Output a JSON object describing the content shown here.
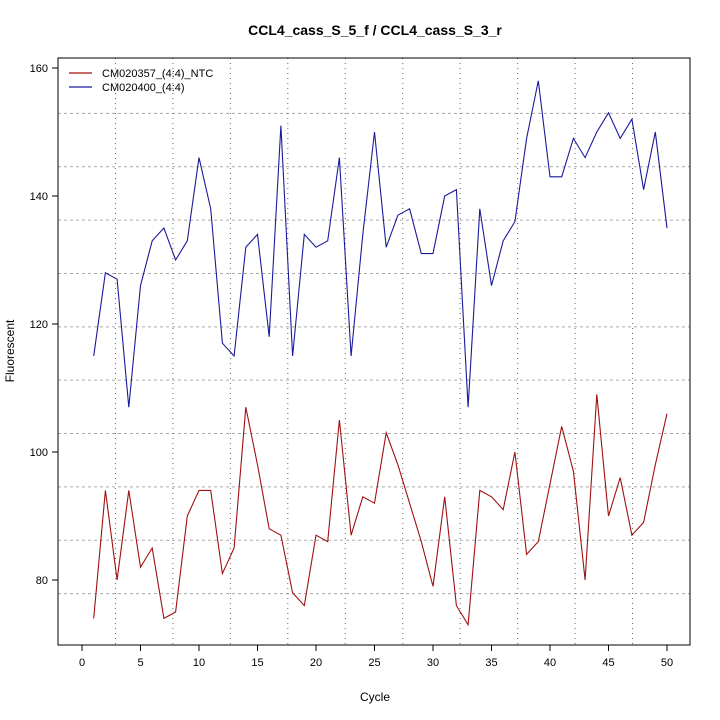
{
  "chart_data": {
    "type": "line",
    "title": "CCL4_cass_S_5_f / CCL4_cass_S_3_r",
    "xlabel": "Cycle",
    "ylabel": "Fluorescent",
    "xlim": [
      -2,
      52
    ],
    "ylim": [
      70,
      162
    ],
    "xticks": [
      0,
      5,
      10,
      15,
      20,
      25,
      30,
      35,
      40,
      45,
      50
    ],
    "yticks": [
      80,
      100,
      120,
      140,
      160
    ],
    "grid": true,
    "legend_position": "top-left",
    "x": [
      1,
      2,
      3,
      4,
      5,
      6,
      7,
      8,
      9,
      10,
      11,
      12,
      13,
      14,
      15,
      16,
      17,
      18,
      19,
      20,
      21,
      22,
      23,
      24,
      25,
      26,
      27,
      28,
      29,
      30,
      31,
      32,
      33,
      34,
      35,
      36,
      37,
      38,
      39,
      40,
      41,
      42,
      43,
      44,
      45,
      46,
      47,
      48,
      49,
      50
    ],
    "series": [
      {
        "name": "CM020357_(4:4)_NTC",
        "color": "#a01010",
        "values": [
          74,
          94,
          80,
          94,
          82,
          85,
          74,
          75,
          90,
          94,
          94,
          81,
          85,
          107,
          98,
          88,
          87,
          78,
          76,
          87,
          86,
          105,
          87,
          93,
          92,
          103,
          98,
          92,
          86,
          79,
          93,
          76,
          73,
          94,
          93,
          91,
          100,
          84,
          86,
          95,
          104,
          97,
          80,
          109,
          90,
          96,
          87,
          89,
          98,
          106
        ]
      },
      {
        "name": "CM020400_(4:4)",
        "color": "#1a1a9a",
        "values": [
          115,
          128,
          127,
          107,
          126,
          133,
          135,
          130,
          133,
          146,
          138,
          117,
          115,
          132,
          134,
          118,
          151,
          115,
          134,
          132,
          133,
          146,
          115,
          134,
          150,
          132,
          137,
          138,
          131,
          131,
          140,
          141,
          107,
          138,
          126,
          133,
          136,
          149,
          158,
          143,
          143,
          149,
          146,
          150,
          153,
          149,
          152,
          141,
          150,
          135
        ]
      }
    ]
  }
}
